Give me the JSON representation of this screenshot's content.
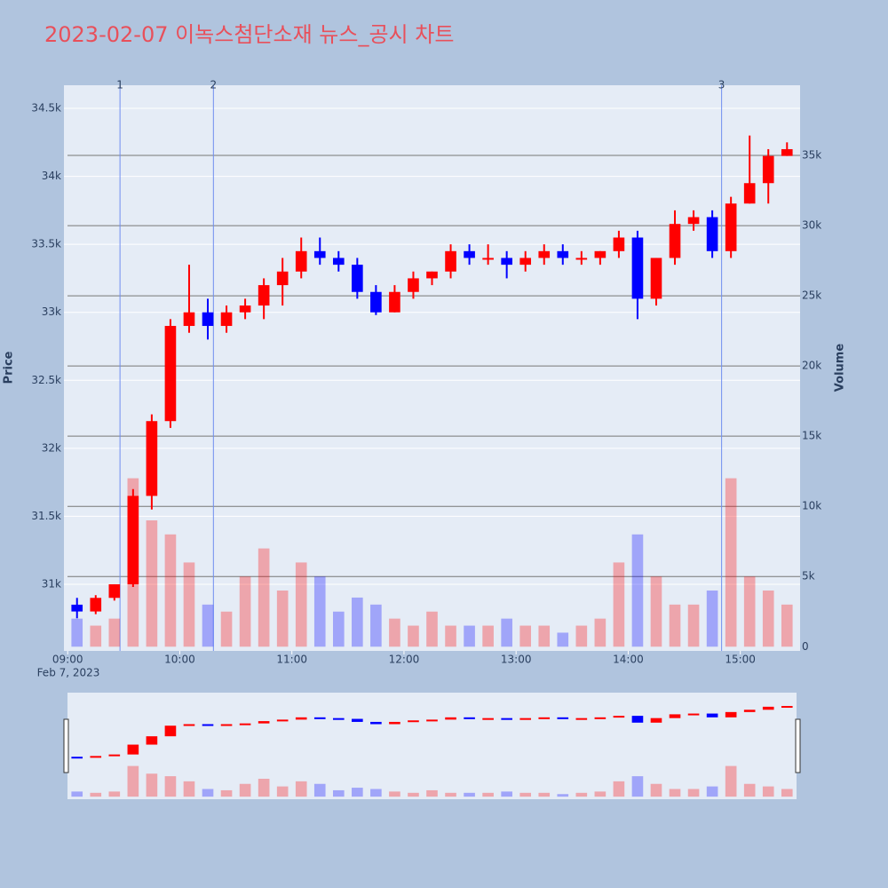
{
  "chart_data": {
    "type": "candlestick",
    "title": "2023-02-07 이녹스첨단소재 뉴스_공시 차트",
    "y_label": "Price",
    "y2_label": "Volume",
    "x_date_label": "Feb 7, 2023",
    "up_color": "#ff0000",
    "down_color": "#0000ff",
    "x": [
      "09:00",
      "09:10",
      "09:20",
      "09:30",
      "09:40",
      "09:50",
      "10:00",
      "10:10",
      "10:20",
      "10:30",
      "10:40",
      "10:50",
      "11:00",
      "11:10",
      "11:20",
      "11:30",
      "11:40",
      "11:50",
      "12:00",
      "12:10",
      "12:20",
      "12:30",
      "12:40",
      "12:50",
      "13:00",
      "13:10",
      "13:20",
      "13:30",
      "13:40",
      "13:50",
      "14:00",
      "14:10",
      "14:20",
      "14:30",
      "14:40",
      "14:50",
      "15:00",
      "15:10",
      "15:20"
    ],
    "open": [
      30850,
      30800,
      30900,
      31000,
      31650,
      32200,
      32900,
      33000,
      32900,
      33000,
      33050,
      33200,
      33300,
      33450,
      33400,
      33350,
      33150,
      33000,
      33150,
      33250,
      33300,
      33450,
      33400,
      33400,
      33350,
      33400,
      33450,
      33400,
      33400,
      33450,
      33550,
      33100,
      33400,
      33650,
      33700,
      33450,
      33800,
      33950,
      34150
    ],
    "high": [
      30900,
      30920,
      31000,
      31700,
      32250,
      32950,
      33350,
      33100,
      33050,
      33100,
      33250,
      33400,
      33550,
      33550,
      33450,
      33400,
      33200,
      33200,
      33300,
      33300,
      33500,
      33500,
      33500,
      33450,
      33450,
      33500,
      33500,
      33450,
      33450,
      33600,
      33600,
      33400,
      33750,
      33750,
      33750,
      33850,
      34300,
      34200,
      34250
    ],
    "low": [
      30750,
      30780,
      30880,
      30980,
      31550,
      32150,
      32850,
      32800,
      32850,
      32950,
      32950,
      33050,
      33250,
      33350,
      33300,
      33100,
      32980,
      33000,
      33100,
      33200,
      33250,
      33350,
      33350,
      33250,
      33300,
      33350,
      33350,
      33350,
      33350,
      33400,
      32950,
      33050,
      33350,
      33600,
      33400,
      33400,
      33800,
      33800,
      34150
    ],
    "close": [
      30800,
      30900,
      31000,
      31650,
      32200,
      32900,
      33000,
      32900,
      33000,
      33050,
      33200,
      33300,
      33450,
      33400,
      33350,
      33150,
      33000,
      33150,
      33250,
      33300,
      33450,
      33400,
      33400,
      33350,
      33400,
      33450,
      33400,
      33400,
      33450,
      33550,
      33100,
      33400,
      33650,
      33700,
      33450,
      33800,
      33950,
      34150,
      34200
    ],
    "volume": [
      2000,
      1500,
      2000,
      12000,
      9000,
      8000,
      6000,
      3000,
      2500,
      5000,
      7000,
      4000,
      6000,
      5000,
      2500,
      3500,
      3000,
      2000,
      1500,
      2500,
      1500,
      1500,
      1500,
      2000,
      1500,
      1500,
      1000,
      1500,
      2000,
      6000,
      8000,
      5000,
      3000,
      3000,
      4000,
      12000,
      5000,
      4000,
      3000
    ],
    "xlim": [
      "08:58",
      "15:32"
    ],
    "xticks": [
      "09:00",
      "10:00",
      "11:00",
      "12:00",
      "13:00",
      "14:00",
      "15:00"
    ],
    "ylim": [
      30510,
      34670
    ],
    "yticks": [
      {
        "value": 31000,
        "label": "31k"
      },
      {
        "value": 31500,
        "label": "31.5k"
      },
      {
        "value": 32000,
        "label": "32k"
      },
      {
        "value": 32500,
        "label": "32.5k"
      },
      {
        "value": 33000,
        "label": "33k"
      },
      {
        "value": 33500,
        "label": "33.5k"
      },
      {
        "value": 34000,
        "label": "34k"
      },
      {
        "value": 34500,
        "label": "34.5k"
      }
    ],
    "y2lim": [
      -300,
      40000
    ],
    "y2ticks": [
      0,
      {
        "value": 5000,
        "label": "5k"
      },
      {
        "value": 10000,
        "label": "10k"
      },
      {
        "value": 15000,
        "label": "15k"
      },
      {
        "value": 20000,
        "label": "20k"
      },
      {
        "value": 25000,
        "label": "25k"
      },
      {
        "value": 30000,
        "label": "30k"
      },
      {
        "value": 35000,
        "label": "35k"
      }
    ],
    "annotations": [
      {
        "x": "09:28",
        "label": "1"
      },
      {
        "x": "10:18",
        "label": "2"
      },
      {
        "x": "14:50",
        "label": "3"
      }
    ]
  }
}
